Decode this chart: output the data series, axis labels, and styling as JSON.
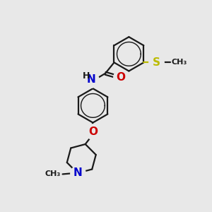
{
  "background_color": "#e8e8e8",
  "bond_color": "#1a1a1a",
  "atom_colors": {
    "N": "#0000cc",
    "O": "#cc0000",
    "S": "#bbbb00",
    "C": "#1a1a1a",
    "H": "#1a1a1a"
  },
  "bond_width": 1.6,
  "figsize": [
    3.0,
    3.0
  ],
  "dpi": 100
}
